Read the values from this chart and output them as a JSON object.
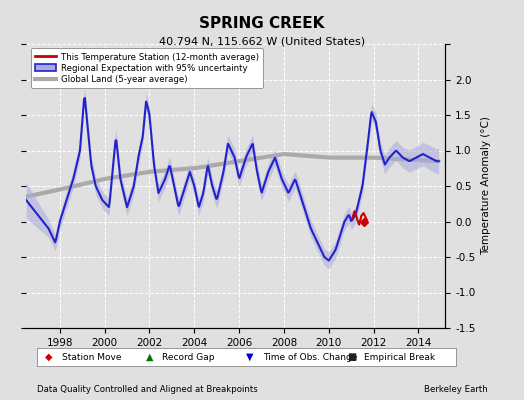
{
  "title": "SPRING CREEK",
  "subtitle": "40.794 N, 115.662 W (United States)",
  "ylabel": "Temperature Anomaly (°C)",
  "footer_left": "Data Quality Controlled and Aligned at Breakpoints",
  "footer_right": "Berkeley Earth",
  "ylim": [
    -1.5,
    2.5
  ],
  "xlim": [
    1996.5,
    2015.2
  ],
  "xticks": [
    1998,
    2000,
    2002,
    2004,
    2006,
    2008,
    2010,
    2012,
    2014
  ],
  "yticks": [
    -1.5,
    -1.0,
    -0.5,
    0.0,
    0.5,
    1.0,
    1.5,
    2.0,
    2.5
  ],
  "bg_color": "#e0e0e0",
  "plot_bg_color": "#e0e0e0",
  "regional_color": "#2222cc",
  "regional_fill_color": "#aaaadd",
  "station_color": "#cc0000",
  "global_color": "#aaaaaa",
  "legend_marker_color_station_move": "#cc0000",
  "legend_marker_color_record_gap": "#007700",
  "legend_marker_color_obs_change": "#0000cc",
  "legend_marker_color_empirical": "#222222",
  "regional_lw": 1.5,
  "global_lw": 3.0,
  "station_lw": 1.5
}
